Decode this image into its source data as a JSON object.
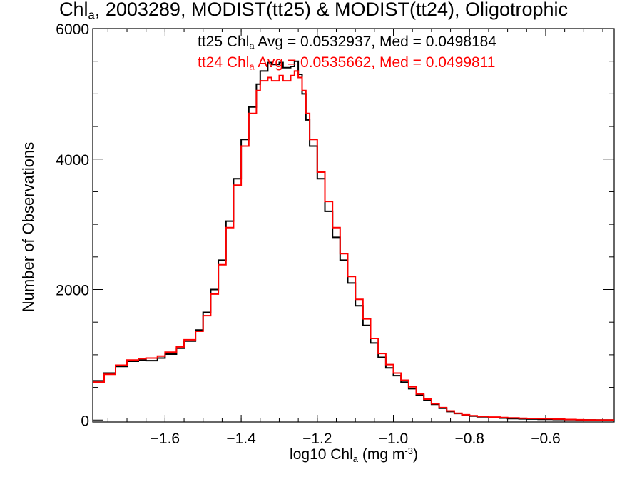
{
  "chart_data": {
    "type": "line",
    "title_main": "Chl",
    "title_sub": "a",
    "title_rest": ", 2003289, MODIST(tt25) & MODIST(tt24), Oligotrophic",
    "xlabel_pre": "log10 Chl",
    "xlabel_sub": "a",
    "xlabel_mid": " (mg m",
    "xlabel_sup": "-3",
    "xlabel_post": ")",
    "ylabel": "Number of Observations",
    "xlim": [
      -1.79,
      -0.42
    ],
    "ylim": [
      -30,
      6000
    ],
    "x_ticks": [
      -1.6,
      -1.4,
      -1.2,
      -1.0,
      -0.8,
      -0.6
    ],
    "x_tick_labels": [
      "−1.6",
      "−1.4",
      "−1.2",
      "−1.0",
      "−0.8",
      "−0.6"
    ],
    "y_ticks": [
      0,
      2000,
      4000,
      6000
    ],
    "y_tick_labels": [
      "0",
      "2000",
      "4000",
      "6000"
    ],
    "legend": [
      {
        "pre": "tt25 Chl",
        "sub": "a",
        "post": " Avg = 0.0532937, Med = 0.0498184",
        "color": "#000000"
      },
      {
        "pre": "tt24 Chl",
        "sub": "a",
        "post": " Avg = 0.0535662, Med = 0.0499811",
        "color": "#ff0000"
      }
    ],
    "series": [
      {
        "name": "tt25",
        "color": "#000000",
        "x": [
          -1.79,
          -1.76,
          -1.73,
          -1.7,
          -1.67,
          -1.65,
          -1.62,
          -1.6,
          -1.57,
          -1.55,
          -1.52,
          -1.5,
          -1.48,
          -1.46,
          -1.44,
          -1.42,
          -1.4,
          -1.38,
          -1.36,
          -1.35,
          -1.33,
          -1.32,
          -1.3,
          -1.29,
          -1.27,
          -1.26,
          -1.25,
          -1.24,
          -1.23,
          -1.22,
          -1.2,
          -1.18,
          -1.16,
          -1.14,
          -1.12,
          -1.1,
          -1.08,
          -1.06,
          -1.04,
          -1.02,
          -1.0,
          -0.98,
          -0.96,
          -0.94,
          -0.92,
          -0.9,
          -0.88,
          -0.86,
          -0.84,
          -0.82,
          -0.8,
          -0.78,
          -0.75,
          -0.72,
          -0.7,
          -0.67,
          -0.65,
          -0.62,
          -0.6,
          -0.58,
          -0.55,
          -0.52,
          -0.5,
          -0.47,
          -0.42
        ],
        "y": [
          600,
          720,
          820,
          900,
          920,
          910,
          950,
          1010,
          1100,
          1210,
          1380,
          1650,
          2000,
          2450,
          3050,
          3700,
          4300,
          4800,
          5150,
          5350,
          5480,
          5450,
          5480,
          5400,
          5420,
          5500,
          5300,
          5000,
          4600,
          4200,
          3700,
          3200,
          2800,
          2450,
          2100,
          1750,
          1450,
          1180,
          960,
          800,
          680,
          580,
          480,
          380,
          300,
          240,
          180,
          130,
          100,
          75,
          60,
          50,
          40,
          30,
          22,
          18,
          15,
          12,
          10,
          8,
          5,
          3,
          2,
          0,
          0
        ]
      },
      {
        "name": "tt24",
        "color": "#ff0000",
        "x": [
          -1.79,
          -1.76,
          -1.73,
          -1.7,
          -1.67,
          -1.65,
          -1.62,
          -1.6,
          -1.57,
          -1.55,
          -1.52,
          -1.5,
          -1.48,
          -1.46,
          -1.44,
          -1.42,
          -1.4,
          -1.38,
          -1.36,
          -1.35,
          -1.33,
          -1.32,
          -1.3,
          -1.29,
          -1.27,
          -1.26,
          -1.25,
          -1.24,
          -1.23,
          -1.22,
          -1.2,
          -1.18,
          -1.16,
          -1.14,
          -1.12,
          -1.1,
          -1.08,
          -1.06,
          -1.04,
          -1.02,
          -1.0,
          -0.98,
          -0.96,
          -0.94,
          -0.92,
          -0.9,
          -0.88,
          -0.86,
          -0.84,
          -0.82,
          -0.8,
          -0.78,
          -0.75,
          -0.72,
          -0.7,
          -0.67,
          -0.65,
          -0.62,
          -0.6,
          -0.58,
          -0.55,
          -0.52,
          -0.5,
          -0.47,
          -0.42
        ],
        "y": [
          580,
          700,
          840,
          920,
          940,
          950,
          980,
          1040,
          1120,
          1230,
          1360,
          1600,
          1930,
          2380,
          2950,
          3600,
          4200,
          4700,
          5050,
          5200,
          5250,
          5200,
          5280,
          5200,
          5280,
          5350,
          5250,
          5050,
          4700,
          4300,
          3800,
          3350,
          2950,
          2550,
          2200,
          1850,
          1550,
          1250,
          1020,
          850,
          720,
          610,
          510,
          400,
          320,
          250,
          190,
          140,
          105,
          80,
          65,
          55,
          45,
          38,
          32,
          28,
          25,
          22,
          20,
          15,
          8,
          4,
          2,
          0,
          0
        ]
      }
    ]
  }
}
